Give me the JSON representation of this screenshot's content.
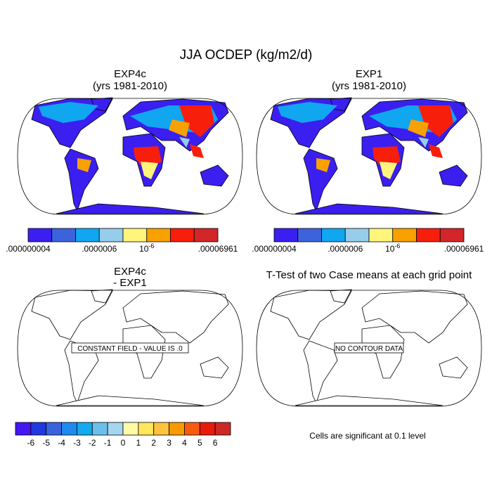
{
  "title": "JJA OCDEP (kg/m2/d)",
  "panels": [
    {
      "title": [
        "EXP4c",
        "(yrs 1981-2010)"
      ]
    },
    {
      "title": [
        "EXP1",
        "(yrs 1981-2010)"
      ]
    },
    {
      "title": [
        "EXP4c",
        "- EXP1"
      ],
      "note": "CONSTANT FIELD - VALUE IS .0"
    },
    {
      "title": [
        "T-Test of two Case means at each grid point"
      ],
      "note": "NO CONTOUR DATA",
      "caption": "Cells are significant at 0.1 level"
    }
  ],
  "colorbars": [
    {
      "colors": [
        "#3a1ff0",
        "#3d63dc",
        "#10a6f0",
        "#96cdeb",
        "#fff57a",
        "#f8a100",
        "#f81e0c",
        "#d2262a"
      ],
      "labels": [
        ".000000004",
        ".0000006",
        {
          "base": "10",
          "exponent": "-6"
        },
        ".00006961"
      ]
    },
    {
      "colors": [
        "#3a1ff0",
        "#3d63dc",
        "#10a6f0",
        "#96cdeb",
        "#fff57a",
        "#f8a100",
        "#f81e0c",
        "#d2262a"
      ],
      "labels": [
        ".000000004",
        ".0000006",
        {
          "base": "10",
          "exponent": "-6"
        },
        ".00006961"
      ]
    },
    {
      "colors": [
        "#4318f2",
        "#2038e0",
        "#3a64dc",
        "#1e8af0",
        "#14aaf0",
        "#6cbfea",
        "#a6d6ee",
        "#fffaa8",
        "#ffe65a",
        "#ffc23c",
        "#f89a00",
        "#f85a10",
        "#e81a0a",
        "#cc2828"
      ],
      "labels": [
        -6,
        -5,
        -4,
        -3,
        -2,
        -1,
        0,
        1,
        2,
        3,
        4,
        5,
        6
      ]
    }
  ]
}
